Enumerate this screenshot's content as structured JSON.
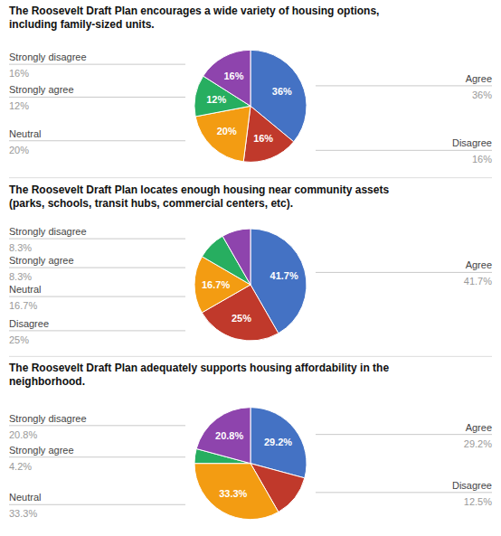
{
  "chart_data": [
    {
      "type": "pie",
      "title": "The Roosevelt Draft Plan encourages a wide variety of housing options,\nincluding family-sized units.",
      "categories": [
        "Agree",
        "Disagree",
        "Neutral",
        "Strongly agree",
        "Strongly disagree"
      ],
      "values": [
        36,
        16,
        20,
        12,
        16
      ],
      "colors": [
        "#4472C4",
        "#C0392B",
        "#F39C12",
        "#27AE60",
        "#8E44AD"
      ],
      "value_labels": [
        "36%",
        "16%",
        "20%",
        "12%",
        "16%"
      ],
      "annotations": [
        "36%",
        "16%",
        "20%",
        "12%",
        "16%"
      ]
    },
    {
      "type": "pie",
      "title": "The Roosevelt Draft Plan locates enough housing near community assets\n(parks, schools, transit hubs, commercial centers, etc).",
      "categories": [
        "Agree",
        "Disagree",
        "Neutral",
        "Strongly agree",
        "Strongly disagree"
      ],
      "values": [
        41.7,
        25,
        16.7,
        8.3,
        8.3
      ],
      "colors": [
        "#4472C4",
        "#C0392B",
        "#F39C12",
        "#27AE60",
        "#8E44AD"
      ],
      "value_labels": [
        "41.7%",
        "25%",
        "16.7%",
        null,
        null
      ],
      "annotations": [
        "41.7%",
        "25%",
        "16.7%",
        "8.3%",
        "8.3%"
      ]
    },
    {
      "type": "pie",
      "title": "The Roosevelt Draft Plan adequately supports housing affordability in the\nneighborhood.",
      "categories": [
        "Agree",
        "Disagree",
        "Neutral",
        "Strongly agree",
        "Strongly disagree"
      ],
      "values": [
        29.2,
        12.5,
        33.3,
        4.2,
        20.8
      ],
      "colors": [
        "#4472C4",
        "#C0392B",
        "#F39C12",
        "#27AE60",
        "#8E44AD"
      ],
      "value_labels": [
        "29.2%",
        null,
        "33.3%",
        null,
        "20.8%"
      ],
      "annotations": [
        "29.2%",
        "12.5%",
        "33.3%",
        "4.2%",
        "20.8%"
      ]
    }
  ]
}
